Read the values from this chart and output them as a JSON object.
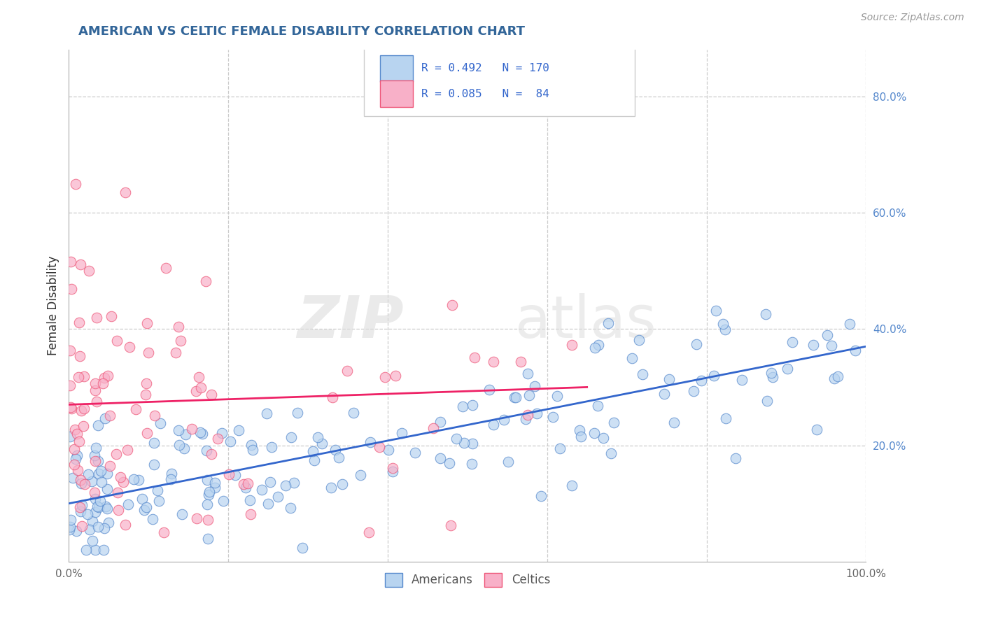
{
  "title": "AMERICAN VS CELTIC FEMALE DISABILITY CORRELATION CHART",
  "source": "Source: ZipAtlas.com",
  "ylabel": "Female Disability",
  "xlim": [
    0.0,
    1.0
  ],
  "ylim": [
    0.0,
    0.88
  ],
  "xticks": [
    0.0,
    0.2,
    0.4,
    0.6,
    0.8,
    1.0
  ],
  "yticks": [
    0.0,
    0.2,
    0.4,
    0.6,
    0.8
  ],
  "xticklabels": [
    "0.0%",
    "",
    "",
    "",
    "",
    "100.0%"
  ],
  "yticklabels_right": [
    "",
    "20.0%",
    "40.0%",
    "60.0%",
    "80.0%"
  ],
  "american_color": "#b8d4f0",
  "celtic_color": "#f8b0c8",
  "american_edge": "#5588cc",
  "celtic_edge": "#ee5577",
  "trend_american": "#3366cc",
  "trend_celtic": "#ee2266",
  "r_american": 0.492,
  "n_american": 170,
  "r_celtic": 0.085,
  "n_celtic": 84,
  "background_color": "#ffffff",
  "grid_color": "#cccccc",
  "title_color": "#336699",
  "legend_label_american": "Americans",
  "legend_label_celtic": "Celtics"
}
